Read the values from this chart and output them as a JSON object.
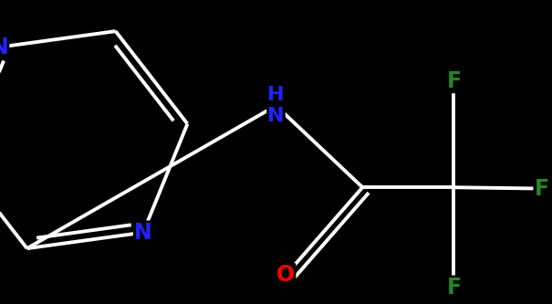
{
  "background_color": "#000000",
  "bond_color": "#ffffff",
  "atom_colors": {
    "N": "#2222ff",
    "O": "#ff0000",
    "F": "#228822",
    "C": "#ffffff"
  },
  "bond_width": 2.8,
  "figsize": [
    6.05,
    3.33
  ],
  "dpi": 100
}
